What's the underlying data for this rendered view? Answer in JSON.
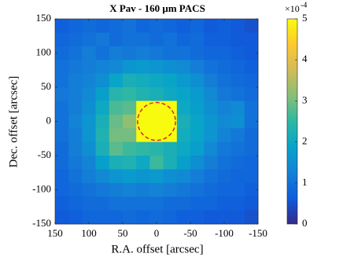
{
  "chart_data": {
    "type": "heatmap",
    "title": "X Pav - 160 μm PACS",
    "xlabel": "R.A. offset [arcsec]",
    "ylabel": "Dec. offset [arcsec]",
    "x": [
      140,
      120,
      100,
      80,
      60,
      40,
      20,
      0,
      -20,
      -40,
      -60,
      -80,
      -100,
      -120,
      -140
    ],
    "y": [
      140,
      120,
      100,
      80,
      60,
      40,
      20,
      0,
      -20,
      -40,
      -60,
      -80,
      -100,
      -120,
      -140
    ],
    "values": [
      [
        0.7,
        0.8,
        0.9,
        0.8,
        0.9,
        1.0,
        0.8,
        0.9,
        0.8,
        0.7,
        0.8,
        0.6,
        0.7,
        0.6,
        0.5
      ],
      [
        0.8,
        0.9,
        1.0,
        1.1,
        0.9,
        1.0,
        1.0,
        0.9,
        1.0,
        0.8,
        0.9,
        0.7,
        0.7,
        0.6,
        0.6
      ],
      [
        0.9,
        1.0,
        1.2,
        1.0,
        1.2,
        1.1,
        1.2,
        1.1,
        1.0,
        1.0,
        0.9,
        0.8,
        0.8,
        0.7,
        0.6
      ],
      [
        1.0,
        1.1,
        1.2,
        1.3,
        1.4,
        1.6,
        1.7,
        1.6,
        1.5,
        1.4,
        1.2,
        1.0,
        0.9,
        0.8,
        0.7
      ],
      [
        1.0,
        1.2,
        1.3,
        1.5,
        1.9,
        2.2,
        2.1,
        2.0,
        1.9,
        1.7,
        1.5,
        1.2,
        1.0,
        0.9,
        0.8
      ],
      [
        1.1,
        1.2,
        1.4,
        1.8,
        2.4,
        2.5,
        2.3,
        2.2,
        2.0,
        1.9,
        1.7,
        1.4,
        1.1,
        1.0,
        0.9
      ],
      [
        1.0,
        1.2,
        1.5,
        2.0,
        2.7,
        2.8,
        5.0,
        5.0,
        5.0,
        2.0,
        1.8,
        1.5,
        1.3,
        1.4,
        1.0
      ],
      [
        1.0,
        1.3,
        1.6,
        2.2,
        2.9,
        3.2,
        5.0,
        5.0,
        5.0,
        2.2,
        1.9,
        1.6,
        1.4,
        1.5,
        1.0
      ],
      [
        1.0,
        1.2,
        1.6,
        2.3,
        3.0,
        3.0,
        5.0,
        5.0,
        5.0,
        2.1,
        1.9,
        1.6,
        1.3,
        1.1,
        0.9
      ],
      [
        0.9,
        1.2,
        1.5,
        2.2,
        2.8,
        2.6,
        2.5,
        2.4,
        2.2,
        2.0,
        1.8,
        1.4,
        1.1,
        1.0,
        0.9
      ],
      [
        0.9,
        1.1,
        1.3,
        1.8,
        2.2,
        2.3,
        2.0,
        2.6,
        2.2,
        1.8,
        1.5,
        1.2,
        1.0,
        0.9,
        0.8
      ],
      [
        0.8,
        1.0,
        1.2,
        1.4,
        1.6,
        1.7,
        1.6,
        1.7,
        1.5,
        1.4,
        1.2,
        1.0,
        0.9,
        0.8,
        0.8
      ],
      [
        0.8,
        0.9,
        1.0,
        1.1,
        1.2,
        1.3,
        1.2,
        1.3,
        1.2,
        1.1,
        1.0,
        0.9,
        0.8,
        0.8,
        0.7
      ],
      [
        0.7,
        0.8,
        0.9,
        0.9,
        1.0,
        1.0,
        1.0,
        1.0,
        0.9,
        0.9,
        0.8,
        0.8,
        0.7,
        0.7,
        0.6
      ],
      [
        0.6,
        0.7,
        0.8,
        0.8,
        0.8,
        0.9,
        0.8,
        0.9,
        0.8,
        0.7,
        0.7,
        0.6,
        0.6,
        0.6,
        0.5
      ]
    ],
    "xlim": [
      150,
      -150
    ],
    "ylim": [
      -150,
      150
    ],
    "xticks": [
      150,
      100,
      50,
      0,
      -50,
      -100,
      -150
    ],
    "yticks": [
      -150,
      -100,
      -50,
      0,
      50,
      100,
      150
    ],
    "clim": [
      0,
      5
    ],
    "cticks": [
      0,
      1,
      2,
      3,
      4,
      5
    ],
    "colorbar_multiplier": {
      "base": "×10",
      "exponent": "-4"
    },
    "colormap": [
      "#352a87",
      "#0f5cdd",
      "#1481d6",
      "#06a4ca",
      "#2eb7a4",
      "#87bf77",
      "#d1bb59",
      "#fec832",
      "#f9fb0e"
    ],
    "annotations": [
      {
        "type": "circle",
        "x": 0,
        "y": 0,
        "radius": 28,
        "color": "#d62728"
      }
    ]
  }
}
